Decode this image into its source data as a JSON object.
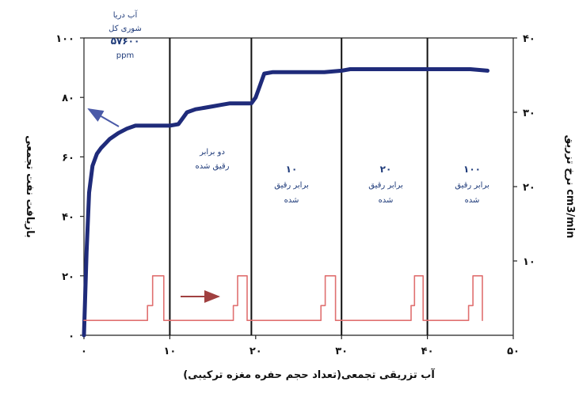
{
  "chart_data": {
    "type": "line",
    "xlabel": "آب تزریقی تجمعی(تعداد حجم حفره مغزه ترکیبی)",
    "ylabel": "بازیافت نفت تجمعی",
    "y2label": "نرخ تزریق cm3/min",
    "x_ticks": [
      "۰",
      "۱۰",
      "۲۰",
      "۳۰",
      "۴۰",
      "۵۰"
    ],
    "y_ticks": [
      "۰",
      "۲۰",
      "۴۰",
      "۶۰",
      "۸۰",
      "۱۰۰"
    ],
    "y2_ticks": [
      "۱۰",
      "۲۰",
      "۳۰",
      "۴۰"
    ],
    "xlim": [
      0,
      50
    ],
    "ylim": [
      0,
      100
    ],
    "y2lim": [
      0,
      40
    ],
    "vertical_lines_x": [
      10,
      19.5,
      30,
      40
    ],
    "series": [
      {
        "name": "recovery",
        "axis": "left",
        "color": "#1f2b7a",
        "x": [
          0,
          0.3,
          0.6,
          1,
          1.5,
          2,
          3,
          4,
          5,
          6,
          7,
          8,
          9,
          10,
          11,
          11.5,
          12,
          13,
          14,
          15,
          16,
          17,
          18,
          19,
          19.5,
          20,
          20.5,
          21,
          22,
          25,
          28,
          30,
          31,
          35,
          40,
          45,
          47
        ],
        "y": [
          0,
          28,
          48,
          57,
          61,
          63,
          66,
          68,
          69.5,
          70.5,
          70.5,
          70.5,
          70.5,
          70.5,
          71,
          73,
          75,
          76,
          76.5,
          77,
          77.5,
          78,
          78,
          78,
          78,
          80,
          84,
          88,
          88.5,
          88.5,
          88.5,
          89,
          89.5,
          89.5,
          89.5,
          89.5,
          89
        ]
      },
      {
        "name": "injection_rate",
        "axis": "right",
        "color": "#e07070",
        "x": [
          0,
          7.4,
          7.4,
          8,
          8,
          9.3,
          9.3,
          17.4,
          17.4,
          17.9,
          17.9,
          19.0,
          19.0,
          27.6,
          27.6,
          28.1,
          28.1,
          29.3,
          29.3,
          38.1,
          38.1,
          38.5,
          38.5,
          39.5,
          39.5,
          44.8,
          44.8,
          45.3,
          45.3,
          46.4,
          46.4
        ],
        "y": [
          2,
          2,
          4,
          4,
          8,
          8,
          2,
          2,
          4,
          4,
          8,
          8,
          2,
          2,
          4,
          4,
          8,
          8,
          2,
          2,
          4,
          4,
          8,
          8,
          2,
          2,
          4,
          4,
          8,
          8,
          2
        ]
      }
    ],
    "annotations": [
      {
        "lines": [
          "آب دریا",
          "شوری کل",
          "۵۷۶۰۰",
          "ppm"
        ]
      },
      {
        "lines": [
          "دو برابر",
          "رقیق شده"
        ]
      },
      {
        "lines": [
          "۱۰",
          "برابر رقیق",
          "شده"
        ]
      },
      {
        "lines": [
          "۲۰",
          "برابر رقیق",
          "شده"
        ]
      },
      {
        "lines": [
          "۱۰۰",
          "برابر رقیق",
          "شده"
        ]
      }
    ]
  }
}
